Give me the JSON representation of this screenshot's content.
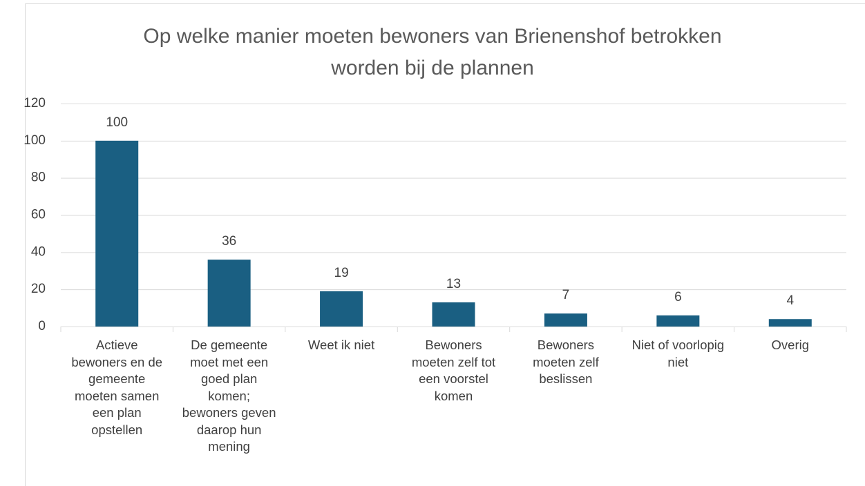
{
  "chart_data": {
    "type": "bar",
    "title": "Op welke manier moeten bewoners van Brienenshof betrokken worden bij de plannen",
    "categories": [
      "Actieve bewoners en de gemeente moeten samen een plan opstellen",
      "De gemeente moet met een goed plan komen; bewoners geven daarop hun mening",
      "Weet ik niet",
      "Bewoners moeten zelf tot een voorstel komen",
      "Bewoners moeten zelf beslissen",
      "Niet of voorlopig niet",
      "Overig"
    ],
    "values": [
      100,
      36,
      19,
      13,
      7,
      6,
      4
    ],
    "color": "#1a5f82",
    "ylim": [
      0,
      120
    ],
    "yticks": [
      0,
      20,
      40,
      60,
      80,
      100,
      120
    ],
    "grid": true
  }
}
